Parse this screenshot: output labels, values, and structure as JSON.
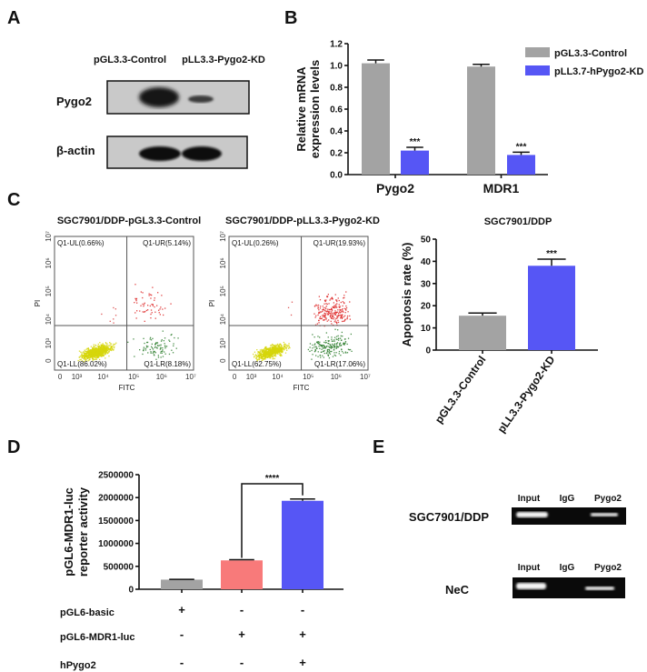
{
  "panels": {
    "A": {
      "letter": "A",
      "lanes": [
        "pGL3.3-Control",
        "pLL3.3-Pygo2-KD"
      ],
      "rows": [
        "Pygo2",
        "β-actin"
      ]
    },
    "B": {
      "letter": "B",
      "chart_data": {
        "type": "bar",
        "categories": [
          "Pygo2",
          "MDR1"
        ],
        "ylabel": [
          "Relative mRNA",
          "expression levels"
        ],
        "ylim": [
          0,
          1.2
        ],
        "yticks": [
          "0.0",
          "0.2",
          "0.4",
          "0.6",
          "0.8",
          "1.0",
          "1.2"
        ],
        "series": [
          {
            "name": "pGL3.3-Control",
            "color": "#a3a3a3",
            "values": [
              1.02,
              0.99
            ],
            "errors": [
              0.03,
              0.02
            ]
          },
          {
            "name": "pLL3.7-hPygo2-KD",
            "color": "#5656f5",
            "values": [
              0.22,
              0.18
            ],
            "errors": [
              0.03,
              0.025
            ],
            "significance": [
              "***",
              "***"
            ]
          }
        ],
        "legend": "top-right"
      }
    },
    "C": {
      "letter": "C",
      "flow": [
        {
          "title": "SGC7901/DDP-pGL3.3-Control",
          "quadrants": {
            "UL": "Q1-UL(0.66%)",
            "UR": "Q1-UR(5.14%)",
            "LL": "Q1-LL(86.02%)",
            "LR": "Q1-LR(8.18%)"
          },
          "percent": {
            "UL": 0.66,
            "UR": 5.14,
            "LL": 86.02,
            "LR": 8.18
          }
        },
        {
          "title": "SGC7901/DDP-pLL3.3-Pygo2-KD",
          "quadrants": {
            "UL": "Q1-UL(0.26%)",
            "UR": "Q1-UR(19.93%)",
            "LL": "Q1-LL(62.75%)",
            "LR": "Q1-LR(17.06%)"
          },
          "percent": {
            "UL": 0.26,
            "UR": 19.93,
            "LL": 62.75,
            "LR": 17.06
          }
        }
      ],
      "flow_axes": {
        "xlabel": "FITC",
        "ylabel": "PI",
        "ticks": [
          "0",
          "10³",
          "10⁴",
          "10⁵",
          "10⁶",
          "10⁷"
        ]
      },
      "quadrant_colors": {
        "UL": "#d83a3a",
        "UR": "#dd2222",
        "LL": "#d6d60a",
        "LR": "#2b7d2b"
      },
      "chart_data": {
        "type": "bar",
        "title": "SGC7901/DDP",
        "categories": [
          "pGL3.3-Control",
          "pLL3.3-Pygo2-KD"
        ],
        "values": [
          15.5,
          38.0
        ],
        "errors": [
          1.2,
          3.0
        ],
        "colors": [
          "#a3a3a3",
          "#5656f5"
        ],
        "significance": [
          "",
          "***"
        ],
        "ylabel": "Apoptosis rate (%)",
        "ylim": [
          0,
          50
        ],
        "yticks": [
          "0",
          "10",
          "20",
          "30",
          "40",
          "50"
        ]
      }
    },
    "D": {
      "letter": "D",
      "chart_data": {
        "type": "bar",
        "values": [
          210000,
          630000,
          1930000
        ],
        "errors": [
          5000,
          15000,
          40000
        ],
        "colors": [
          "#a3a3a3",
          "#f87a7a",
          "#5656f5"
        ],
        "ylabel": [
          "pGL6-MDR1-luc",
          "reporter activity"
        ],
        "ylim": [
          0,
          2500000
        ],
        "yticks": [
          "0",
          "500000",
          "1000000",
          "1500000",
          "2000000",
          "2500000"
        ],
        "comparison": {
          "between": [
            2,
            3
          ],
          "label": "****"
        }
      },
      "conditions": [
        {
          "label": "pGL6-basic",
          "marks": [
            "+",
            "-",
            "-"
          ]
        },
        {
          "label": "pGL6-MDR1-luc",
          "marks": [
            "-",
            "+",
            "+"
          ]
        },
        {
          "label": "hPygo2",
          "marks": [
            "-",
            "-",
            "+"
          ]
        }
      ]
    },
    "E": {
      "letter": "E",
      "gels": [
        {
          "label": "SGC7901/DDP",
          "lanes": [
            "Input",
            "IgG",
            "Pygo2"
          ]
        },
        {
          "label": "NeC",
          "lanes": [
            "Input",
            "IgG",
            "Pygo2"
          ]
        }
      ]
    }
  }
}
